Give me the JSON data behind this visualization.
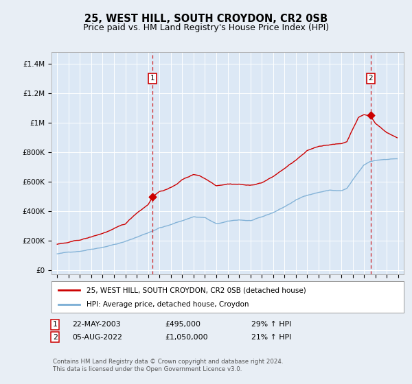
{
  "title": "25, WEST HILL, SOUTH CROYDON, CR2 0SB",
  "subtitle": "Price paid vs. HM Land Registry's House Price Index (HPI)",
  "title_fontsize": 10.5,
  "subtitle_fontsize": 9,
  "background_color": "#e8eef5",
  "plot_bg_color": "#dce8f5",
  "ylabel_ticks": [
    "£0",
    "£200K",
    "£400K",
    "£600K",
    "£800K",
    "£1M",
    "£1.2M",
    "£1.4M"
  ],
  "ytick_values": [
    0,
    200000,
    400000,
    600000,
    800000,
    1000000,
    1200000,
    1400000
  ],
  "xlim": [
    1994.5,
    2025.5
  ],
  "ylim": [
    -30000,
    1480000
  ],
  "transaction1_year": 2003.37,
  "transaction1_price": 495000,
  "transaction2_year": 2022.58,
  "transaction2_price": 1050000,
  "legend_label1": "25, WEST HILL, SOUTH CROYDON, CR2 0SB (detached house)",
  "legend_label2": "HPI: Average price, detached house, Croydon",
  "footer1": "Contains HM Land Registry data © Crown copyright and database right 2024.",
  "footer2": "This data is licensed under the Open Government Licence v3.0.",
  "red_color": "#cc0000",
  "blue_color": "#7aadd4",
  "table_row1_label": "1",
  "table_row1_date": "22-MAY-2003",
  "table_row1_price": "£495,000",
  "table_row1_hpi": "29% ↑ HPI",
  "table_row2_label": "2",
  "table_row2_date": "05-AUG-2022",
  "table_row2_price": "£1,050,000",
  "table_row2_hpi": "21% ↑ HPI"
}
